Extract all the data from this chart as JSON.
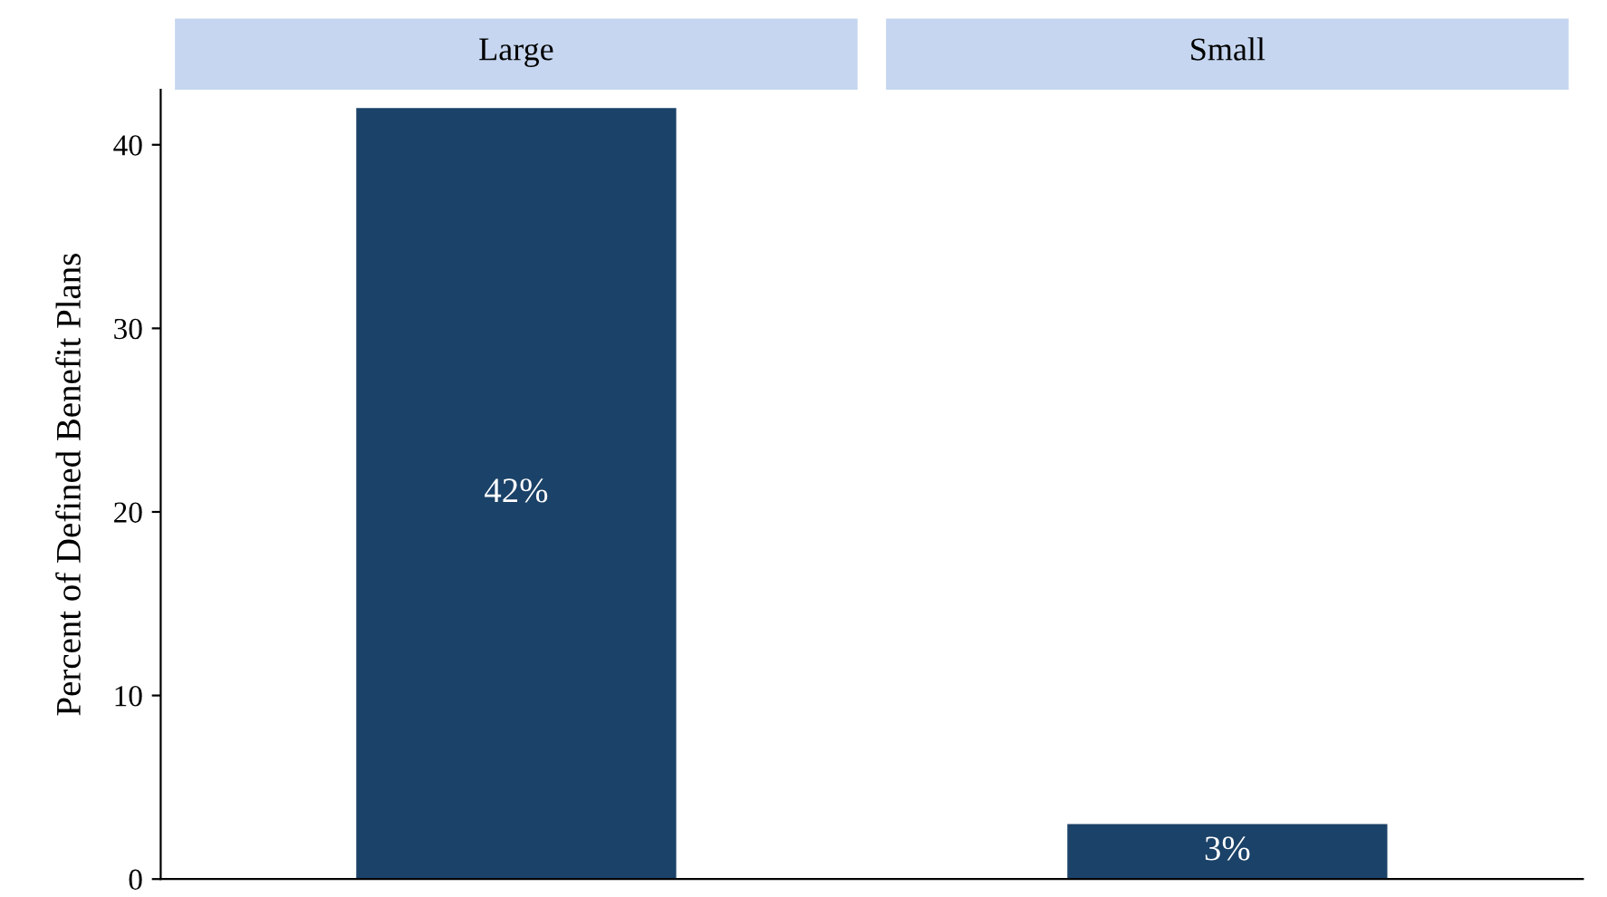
{
  "chart_data": {
    "type": "bar",
    "ylabel": "Percent of Defined Benefit Plans",
    "categories": [
      "Large",
      "Small"
    ],
    "values": [
      42,
      3
    ],
    "value_labels": [
      "42%",
      "3%"
    ],
    "color": "#1b4268",
    "ylim": [
      0,
      43
    ],
    "yticks": [
      0,
      10,
      20,
      30,
      40
    ],
    "grid": false
  }
}
